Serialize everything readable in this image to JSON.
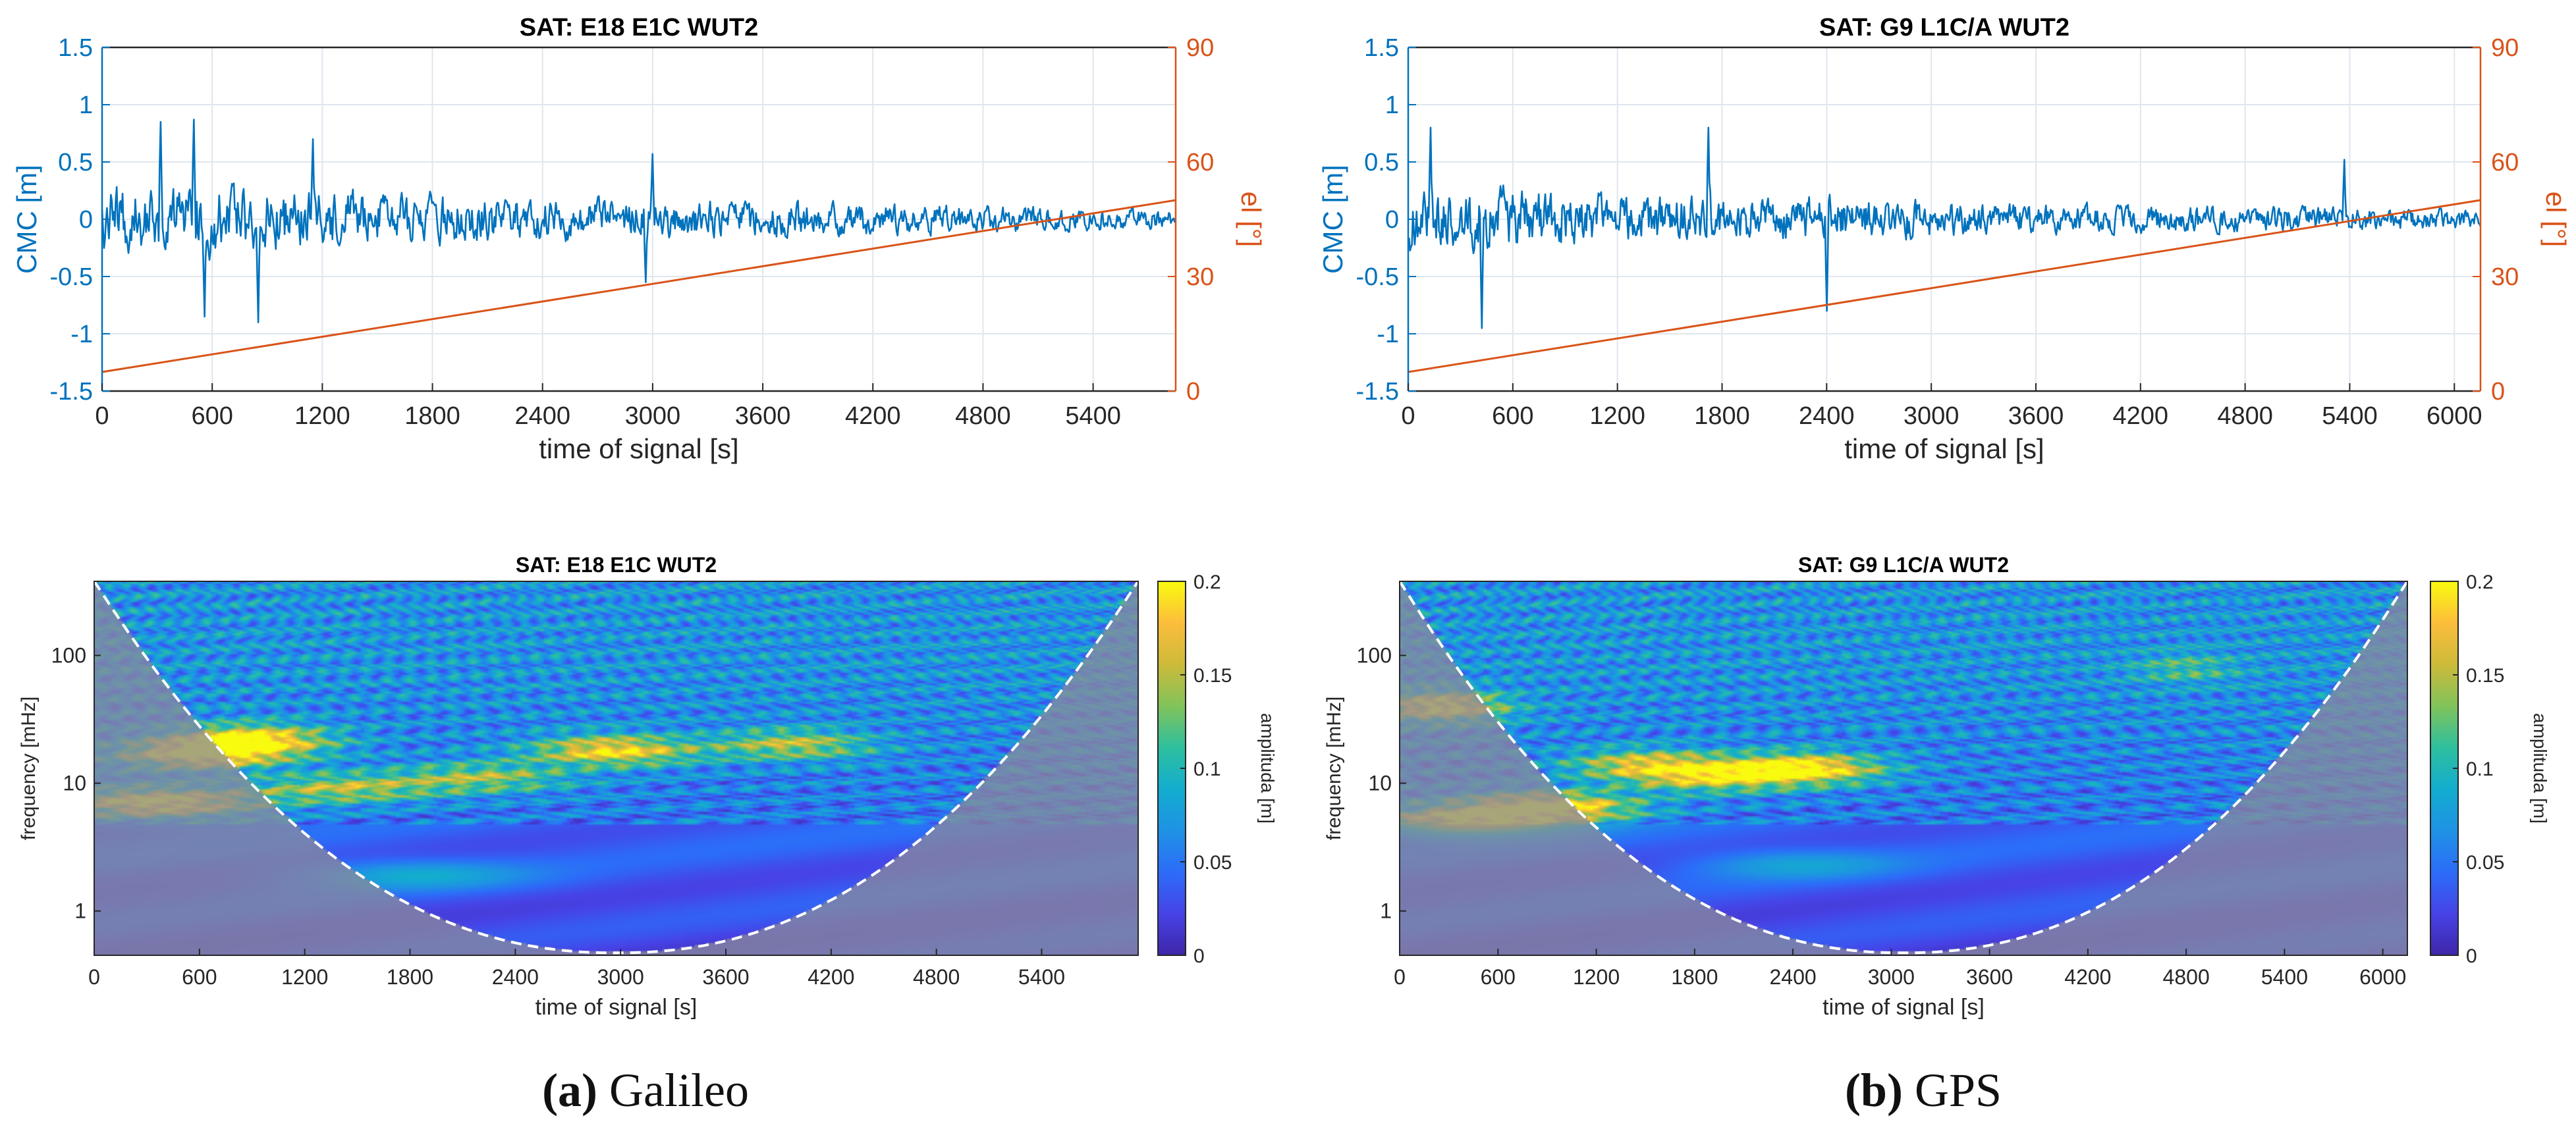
{
  "colors": {
    "cmc": "#0072BD",
    "elevation": "#D95319",
    "axis": "#262626",
    "grid": "#dfe6ee",
    "coi": "#ffffff",
    "outside_coi": "#8a8a9c",
    "colormap": [
      "#3e26a8",
      "#4743e6",
      "#2c6cf9",
      "#1f92e4",
      "#13adcf",
      "#2ebf9e",
      "#81c35a",
      "#cdba3a",
      "#fcbd3c",
      "#f9fb0e"
    ]
  },
  "panels": [
    {
      "caption_letter": "(a)",
      "caption_text": " Galileo"
    },
    {
      "caption_letter": "(b)",
      "caption_text": " GPS"
    }
  ],
  "chart_data": [
    {
      "type": "line",
      "id": "cmc_e18",
      "title": "SAT: E18   E1C  WUT2",
      "xlabel": "time of signal [s]",
      "ylabel": "CMC [m]",
      "y2label": "el [°]",
      "xlim": [
        0,
        5850
      ],
      "ylim": [
        -1.5,
        1.5
      ],
      "y2lim": [
        0,
        90
      ],
      "xticks": [
        "0",
        "600",
        "1200",
        "1800",
        "2400",
        "3000",
        "3600",
        "4200",
        "4800",
        "5400"
      ],
      "yticks": [
        "1.5",
        "1",
        "0.5",
        "0",
        "-0.5",
        "-1",
        "-1.5"
      ],
      "y2ticks": [
        "90",
        "60",
        "30",
        "0"
      ],
      "grid": true,
      "series": [
        {
          "name": "CMC",
          "axis": "left",
          "kind": "noise",
          "seed": 18,
          "samples": 1100,
          "envelope": {
            "t": [
              0,
              600,
              1200,
              2400,
              3600,
              4800,
              5850
            ],
            "amp": [
              0.34,
              0.38,
              0.3,
              0.22,
              0.19,
              0.14,
              0.1
            ]
          },
          "spikes": [
            {
              "t": 320,
              "v": 0.85
            },
            {
              "t": 500,
              "v": 0.87
            },
            {
              "t": 560,
              "v": -0.85
            },
            {
              "t": 850,
              "v": -0.9
            },
            {
              "t": 1150,
              "v": 0.7
            },
            {
              "t": 2960,
              "v": -0.55
            },
            {
              "t": 3000,
              "v": 0.57
            }
          ]
        },
        {
          "name": "elevation",
          "axis": "right",
          "kind": "line",
          "x": [
            0,
            5850
          ],
          "y": [
            5,
            50
          ]
        }
      ]
    },
    {
      "type": "line",
      "id": "cmc_g9",
      "title": "SAT: G9   L1C/A  WUT2",
      "xlabel": "time of signal [s]",
      "ylabel": "CMC [m]",
      "y2label": "el [°]",
      "xlim": [
        0,
        6150
      ],
      "ylim": [
        -1.5,
        1.5
      ],
      "y2lim": [
        0,
        90
      ],
      "xticks": [
        "0",
        "600",
        "1200",
        "1800",
        "2400",
        "3000",
        "3600",
        "4200",
        "4800",
        "5400",
        "6000"
      ],
      "yticks": [
        "1.5",
        "1",
        "0.5",
        "0",
        "-0.5",
        "-1",
        "-1.5"
      ],
      "y2ticks": [
        "90",
        "60",
        "30",
        "0"
      ],
      "grid": true,
      "series": [
        {
          "name": "CMC",
          "axis": "left",
          "kind": "noise",
          "seed": 9,
          "samples": 1150,
          "envelope": {
            "t": [
              0,
              600,
              1200,
              2400,
              3600,
              4800,
              6150
            ],
            "amp": [
              0.34,
              0.33,
              0.27,
              0.24,
              0.15,
              0.13,
              0.11
            ]
          },
          "spikes": [
            {
              "t": 130,
              "v": 0.8
            },
            {
              "t": 420,
              "v": -0.95
            },
            {
              "t": 1720,
              "v": 0.8
            },
            {
              "t": 2400,
              "v": -0.8
            },
            {
              "t": 5370,
              "v": 0.52
            }
          ]
        },
        {
          "name": "elevation",
          "axis": "right",
          "kind": "line",
          "x": [
            0,
            6150
          ],
          "y": [
            5,
            50
          ]
        }
      ]
    },
    {
      "type": "heatmap",
      "id": "scalogram_e18",
      "title": "SAT: E18   E1C  WUT2",
      "xlabel": "time of signal [s]",
      "ylabel": "frequency [mHz]",
      "colorbar_label": "amplituda [m]",
      "colorbar_ticks": [
        "0.2",
        "0.15",
        "0.1",
        "0.05",
        "0"
      ],
      "clim": [
        0,
        0.2
      ],
      "xlim": [
        0,
        5950
      ],
      "ylim_mhz": [
        0.45,
        380
      ],
      "xticks": [
        "0",
        "600",
        "1200",
        "1800",
        "2400",
        "3000",
        "3600",
        "4200",
        "4800",
        "5400"
      ],
      "yticks": [
        "100",
        "10",
        "1"
      ],
      "seed": 18,
      "hotspots": [
        {
          "t": 350,
          "f": 7,
          "a": 1.0
        },
        {
          "t": 600,
          "f": 17,
          "a": 0.95
        },
        {
          "t": 900,
          "f": 22,
          "a": 0.9
        },
        {
          "t": 1400,
          "f": 9,
          "a": 0.6
        },
        {
          "t": 2200,
          "f": 11,
          "a": 0.55
        },
        {
          "t": 2950,
          "f": 18,
          "a": 0.85
        },
        {
          "t": 3980,
          "f": 20,
          "a": 0.6
        },
        {
          "t": 1800,
          "f": 1.9,
          "a": 0.35
        }
      ]
    },
    {
      "type": "heatmap",
      "id": "scalogram_g9",
      "title": "SAT: G9   L1C/A  WUT2",
      "xlabel": "time of signal [s]",
      "ylabel": "frequency [mHz]",
      "colorbar_label": "amplituda [m]",
      "colorbar_ticks": [
        "0.2",
        "0.15",
        "0.1",
        "0.05",
        "0"
      ],
      "clim": [
        0,
        0.2
      ],
      "xlim": [
        0,
        6150
      ],
      "ylim_mhz": [
        0.45,
        380
      ],
      "xticks": [
        "0",
        "600",
        "1200",
        "1800",
        "2400",
        "3000",
        "3600",
        "4200",
        "4800",
        "5400",
        "6000"
      ],
      "yticks": [
        "100",
        "10",
        "1"
      ],
      "seed": 9,
      "hotspots": [
        {
          "t": 250,
          "f": 40,
          "a": 0.9
        },
        {
          "t": 380,
          "f": 5,
          "a": 0.85
        },
        {
          "t": 900,
          "f": 6.5,
          "a": 1.0
        },
        {
          "t": 1500,
          "f": 14,
          "a": 0.7
        },
        {
          "t": 2450,
          "f": 13,
          "a": 1.0
        },
        {
          "t": 1900,
          "f": 11,
          "a": 0.6
        },
        {
          "t": 4800,
          "f": 80,
          "a": 0.3
        },
        {
          "t": 2400,
          "f": 2.3,
          "a": 0.3
        }
      ]
    }
  ]
}
